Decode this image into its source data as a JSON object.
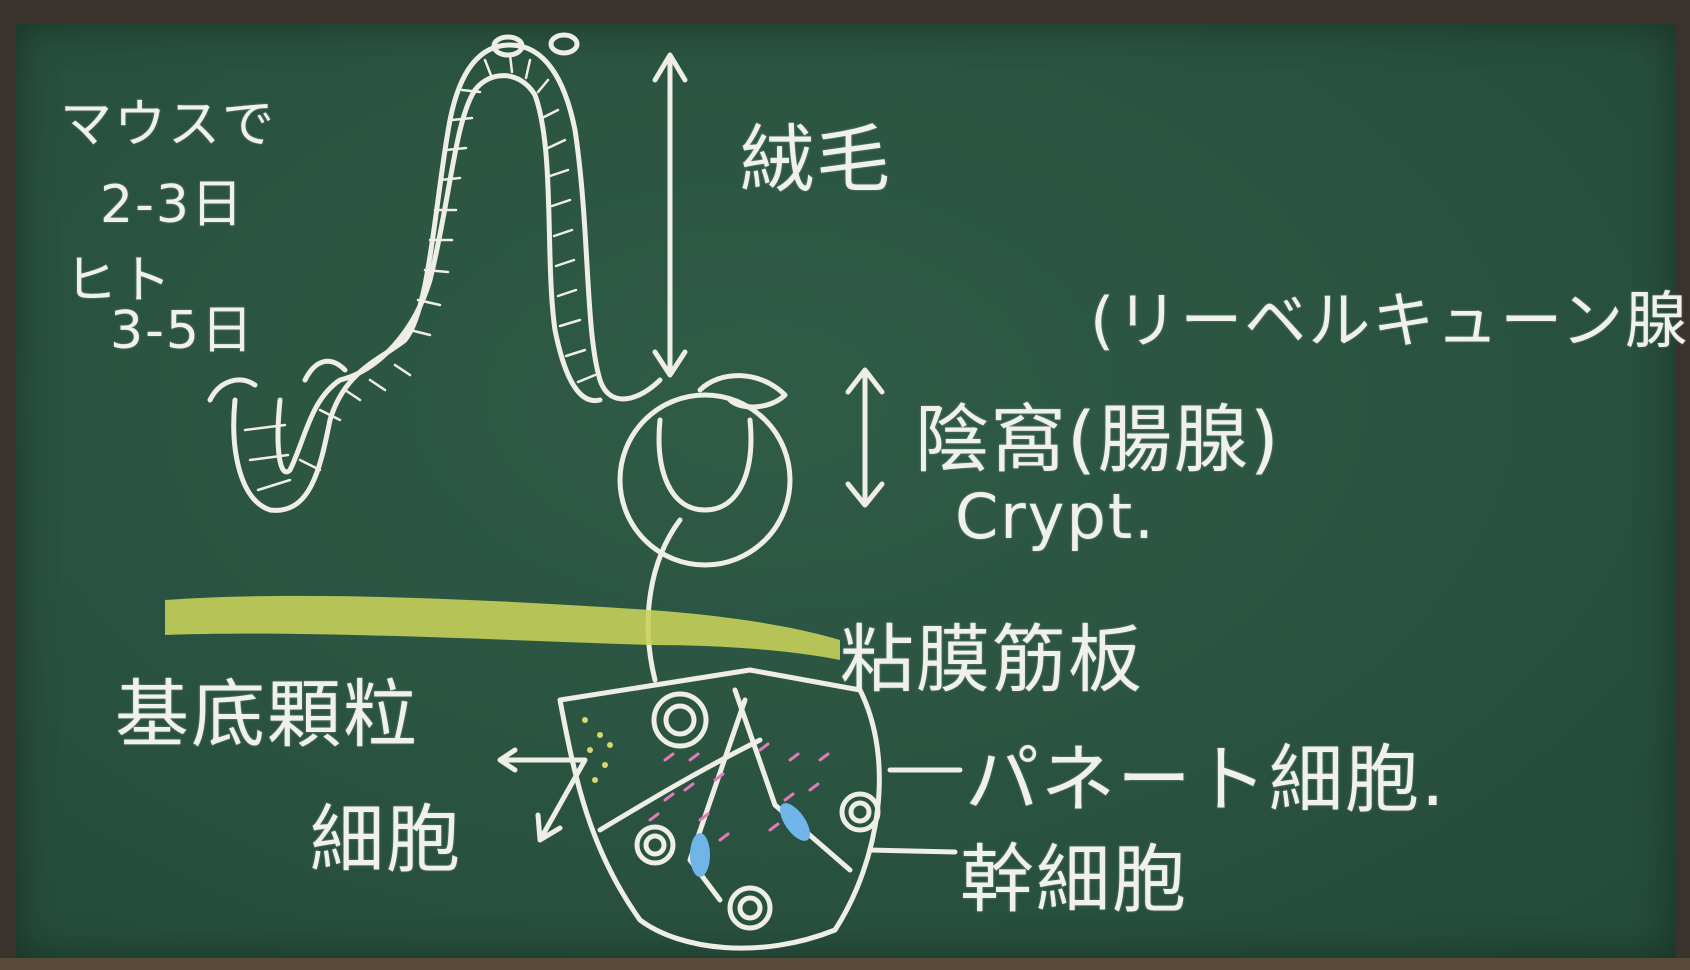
{
  "notes": {
    "line1": "マウスで",
    "line2": "2-3日",
    "line3": "ヒト",
    "line4": "3-5日"
  },
  "labels": {
    "villus": "絨毛",
    "crypt_of_lieberkuhn": "(リーベルキューン腺)",
    "crypt_jp": "陰窩(腸腺)",
    "crypt_en": "Crypt.",
    "muscularis_mucosae": "粘膜筋板",
    "basal_granular_cell_1": "基底顆粒",
    "basal_granular_cell_2": "細胞",
    "paneth_cell": "パネート細胞.",
    "stem_cell": "幹細胞"
  },
  "colors": {
    "board": "#2a5240",
    "chalk_white": "#f1f1ec",
    "chalk_yellow": "#c9d35a",
    "chalk_pink": "#e07ab8",
    "chalk_blue": "#6fb5e8"
  }
}
